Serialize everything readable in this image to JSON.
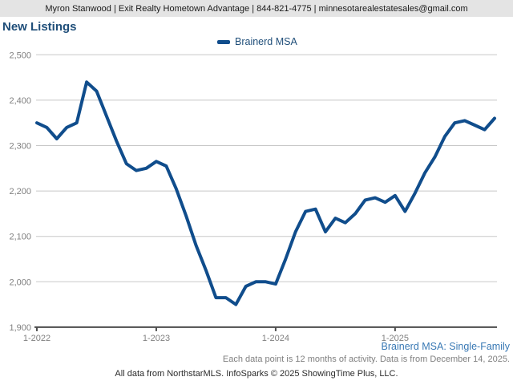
{
  "header": {
    "agent_line": "Myron Stanwood | Exit Realty Hometown Advantage | 844-821-4775 | minnesotarealestatesales@gmail.com"
  },
  "title": "New Listings",
  "legend": {
    "label": "Brainerd MSA"
  },
  "chart_data": {
    "type": "line",
    "title": "New Listings",
    "series_name": "Brainerd MSA",
    "legend_position": "top-center",
    "grid": true,
    "ylim": [
      1900,
      2500
    ],
    "ytick_step": 100,
    "xticks": [
      "1-2022",
      "1-2023",
      "1-2024",
      "1-2025"
    ],
    "color": "#104d8c",
    "x": [
      "1-2022",
      "2-2022",
      "3-2022",
      "4-2022",
      "5-2022",
      "6-2022",
      "7-2022",
      "8-2022",
      "9-2022",
      "10-2022",
      "11-2022",
      "12-2022",
      "1-2023",
      "2-2023",
      "3-2023",
      "4-2023",
      "5-2023",
      "6-2023",
      "7-2023",
      "8-2023",
      "9-2023",
      "10-2023",
      "11-2023",
      "12-2023",
      "1-2024",
      "2-2024",
      "3-2024",
      "4-2024",
      "5-2024",
      "6-2024",
      "7-2024",
      "8-2024",
      "9-2024",
      "10-2024",
      "11-2024",
      "12-2024",
      "1-2025",
      "2-2025",
      "3-2025",
      "4-2025",
      "5-2025",
      "6-2025",
      "7-2025",
      "8-2025",
      "9-2025",
      "10-2025",
      "11-2025"
    ],
    "values": [
      2350,
      2340,
      2315,
      2340,
      2350,
      2440,
      2420,
      2365,
      2310,
      2260,
      2245,
      2250,
      2265,
      2255,
      2205,
      2145,
      2080,
      2025,
      1965,
      1965,
      1950,
      1990,
      2000,
      2000,
      1995,
      2050,
      2110,
      2155,
      2160,
      2110,
      2140,
      2130,
      2150,
      2180,
      2185,
      2175,
      2190,
      2155,
      2195,
      2240,
      2275,
      2320,
      2350,
      2355,
      2345,
      2335,
      2360
    ]
  },
  "footer": {
    "dataset_label": "Brainerd MSA: Single-Family",
    "note": "Each data point is 12 months of activity. Data is from December 14, 2025.",
    "attribution": "All data from NorthstarMLS. InfoSparks © 2025 ShowingTime Plus, LLC."
  },
  "colors": {
    "header_bg": "#e4e4e4",
    "header_text": "#1a1a1a",
    "title": "#1f4e79",
    "legend_text": "#1f4e79",
    "line": "#104d8c",
    "gridline": "#c8c8c8",
    "axis_line": "#4d4d4d",
    "axis_text": "#808080",
    "dataset_label": "#3878b4",
    "note_text": "#808080",
    "attribution_text": "#2b2b2b"
  }
}
